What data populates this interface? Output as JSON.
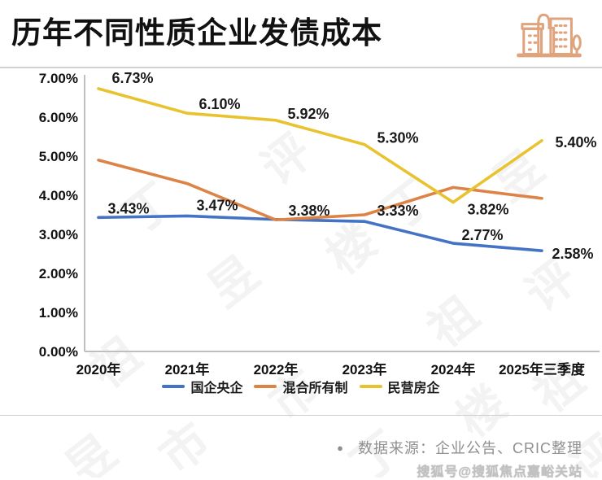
{
  "header": {
    "title": "历年不同性质企业发债成本",
    "icon_color": "#DFA47E"
  },
  "chart_data": {
    "type": "line",
    "title": "历年不同性质企业发债成本",
    "categories": [
      "2020年",
      "2021年",
      "2022年",
      "2023年",
      "2024年",
      "2025年三季度"
    ],
    "series": [
      {
        "name": "国企央企",
        "color": "#4472C4",
        "values": [
          3.43,
          3.47,
          3.38,
          3.33,
          2.77,
          2.58
        ],
        "labels": [
          "3.43%",
          "3.47%",
          "3.38%",
          "3.33%",
          "2.77%",
          "2.58%"
        ]
      },
      {
        "name": "混合所有制",
        "color": "#DC8345",
        "values": [
          4.9,
          4.3,
          3.37,
          3.5,
          4.2,
          3.92
        ],
        "labels": [
          null,
          null,
          null,
          null,
          null,
          null
        ]
      },
      {
        "name": "民营房企",
        "color": "#E9C32F",
        "values": [
          6.73,
          6.1,
          5.92,
          5.3,
          3.82,
          5.4
        ],
        "labels": [
          "6.73%",
          "6.10%",
          "5.92%",
          "5.30%",
          "3.82%",
          "5.40%"
        ]
      }
    ],
    "ylim": [
      0,
      7
    ],
    "yticks": [
      "7.00%",
      "6.00%",
      "5.00%",
      "4.00%",
      "3.00%",
      "2.00%",
      "1.00%",
      "0.00%"
    ],
    "xlabel": "",
    "ylabel": "",
    "grid": false,
    "legend_position": "bottom"
  },
  "footer": {
    "bullet": "●",
    "source_text": "数据来源：企业公告、CRIC整理",
    "sohu_watermark": "搜狐号@搜狐焦点嘉峪关站"
  },
  "background_watermark": {
    "text": "丁祖昱评楼市"
  },
  "colors": {
    "axis": "#bfbfbf",
    "tick_text": "#111111",
    "data_label": "#1a1a1a"
  }
}
